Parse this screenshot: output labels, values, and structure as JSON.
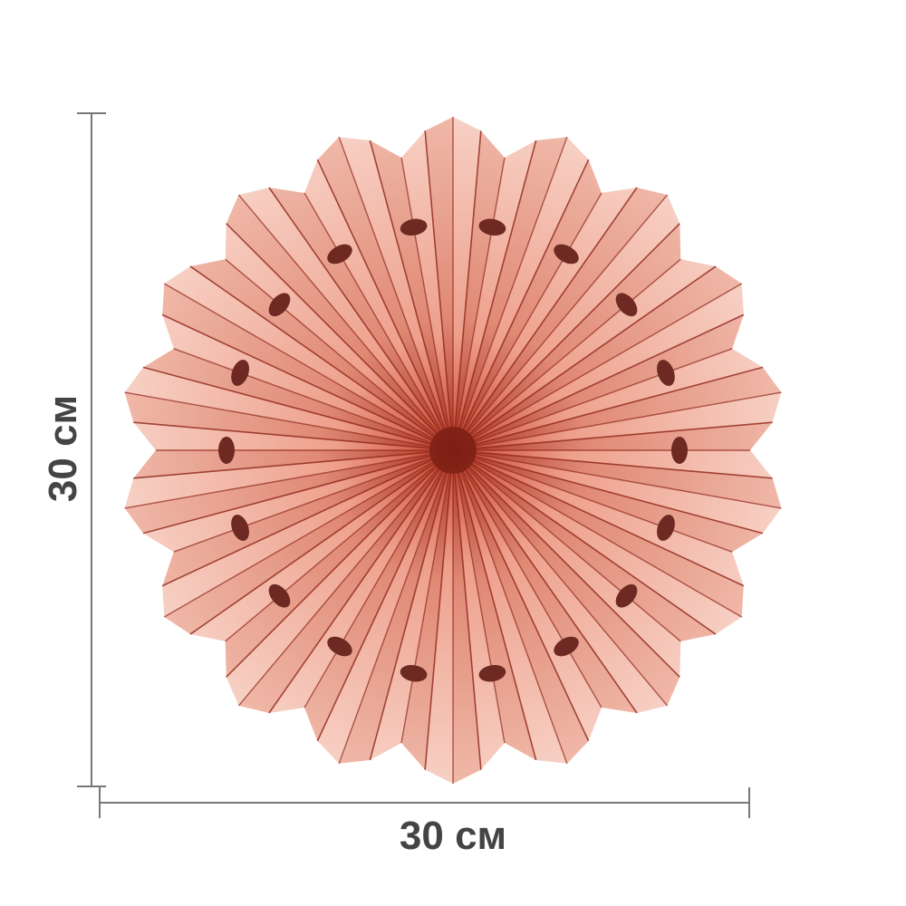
{
  "product": {
    "width_label": "30 см",
    "height_label": "30 см",
    "colors": {
      "paper_light": "#f7d0c4",
      "paper_mid": "#eea08c",
      "paper_center": "#c8432e",
      "fold_line": "#8e2418",
      "dimension_line": "#777777",
      "label_text": "#444444"
    },
    "points": 18
  }
}
